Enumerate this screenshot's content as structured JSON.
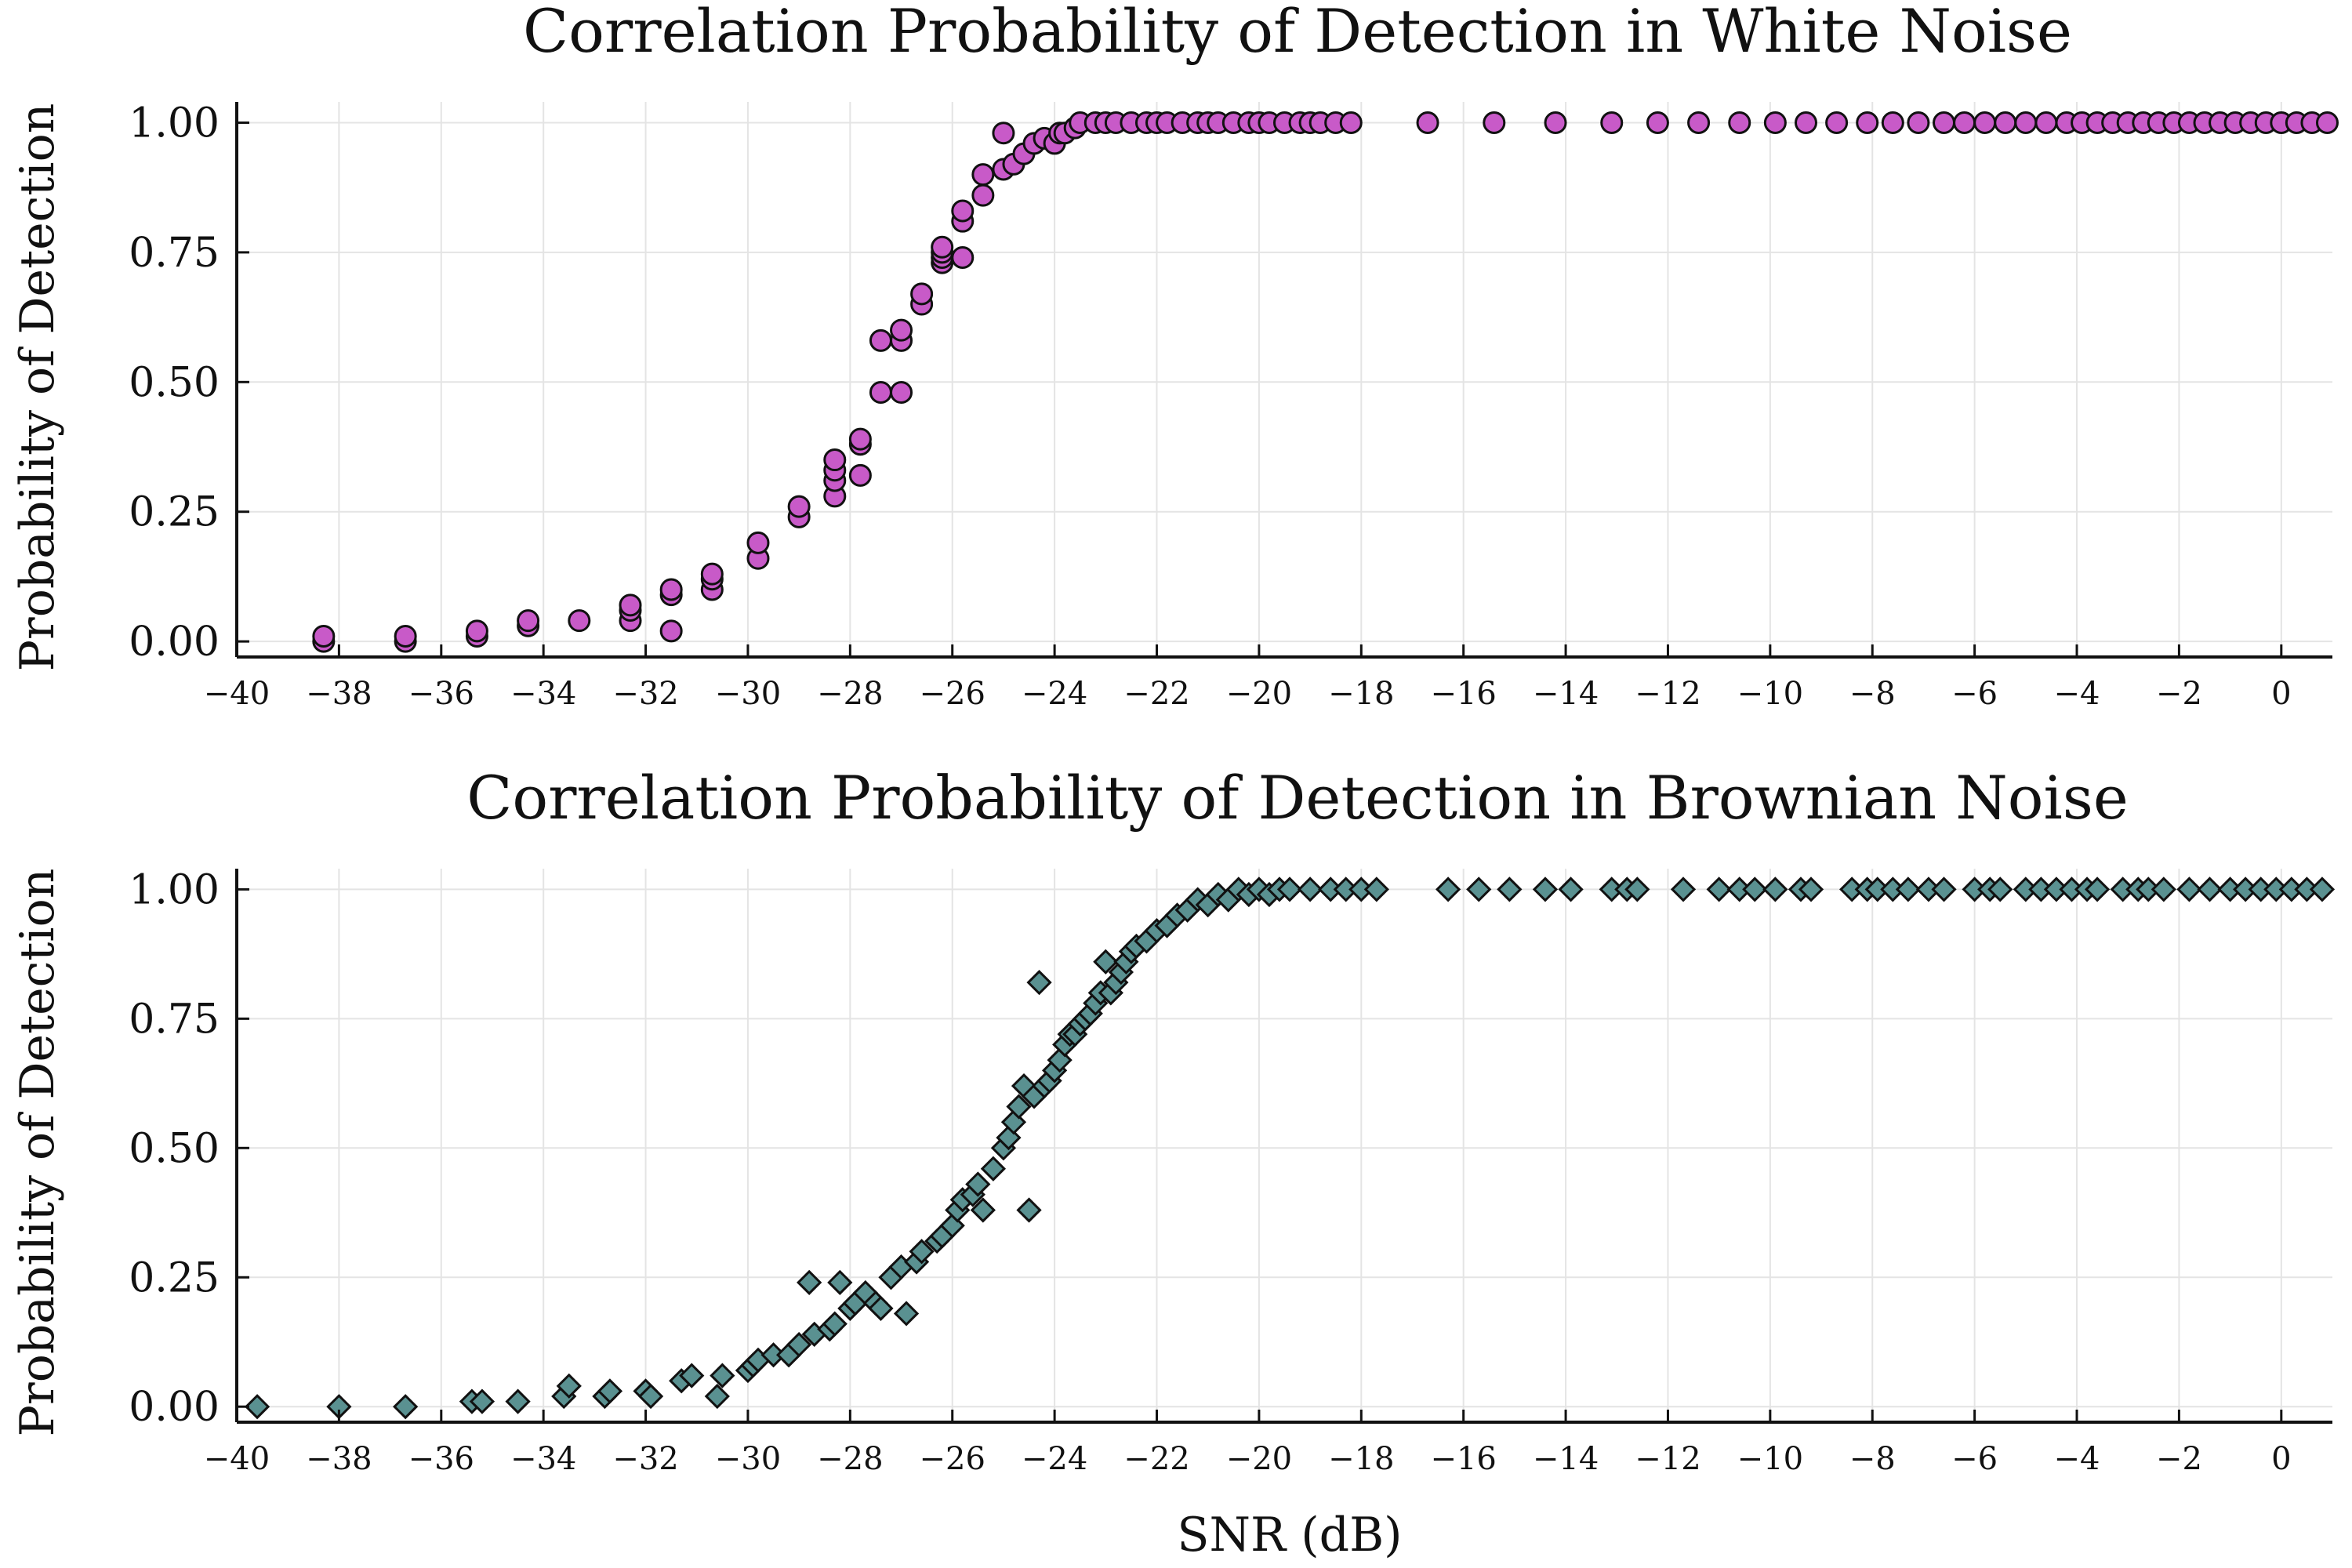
{
  "chart_data": [
    {
      "type": "scatter",
      "title": "Correlation Probability of Detection in White Noise",
      "xlabel": "",
      "ylabel": "Probability of Detection",
      "xlim": [
        -40,
        1
      ],
      "ylim": [
        -0.03,
        1.04
      ],
      "xticks": [
        "−40",
        "−38",
        "−36",
        "−34",
        "−32",
        "−30",
        "−28",
        "−26",
        "−24",
        "−22",
        "−20",
        "−18",
        "−16",
        "−14",
        "−12",
        "−10",
        "−8",
        "−6",
        "−4",
        "−2",
        "0"
      ],
      "yticks": [
        "0.00",
        "0.25",
        "0.50",
        "0.75",
        "1.00"
      ],
      "grid": true,
      "marker": "circle",
      "color": "#c85ac8",
      "series": [
        {
          "x": [
            -38.3,
            -38.3,
            -36.7,
            -36.7,
            -35.3,
            -35.3,
            -34.3,
            -34.3,
            -33.3,
            -32.3,
            -32.3,
            -32.3,
            -31.5,
            -31.5,
            -31.5,
            -30.7,
            -30.7,
            -30.7,
            -29.8,
            -29.8,
            -29.0,
            -29.0,
            -28.3,
            -28.3,
            -28.3,
            -28.3,
            -27.8,
            -27.8,
            -27.8,
            -27.4,
            -27.4,
            -27.0,
            -27.0,
            -27.0,
            -26.6,
            -26.6,
            -26.2,
            -26.2,
            -26.2,
            -26.2,
            -25.8,
            -25.8,
            -25.8,
            -25.4,
            -25.4,
            -25.0,
            -25.0,
            -24.8,
            -24.6,
            -24.4,
            -24.2,
            -24.0,
            -23.9,
            -23.8,
            -23.6,
            -23.5,
            -23.2,
            -23.0,
            -22.8,
            -22.5,
            -22.2,
            -22.0,
            -21.8,
            -21.5,
            -21.2,
            -21.0,
            -20.8,
            -20.5,
            -20.2,
            -20.0,
            -19.8,
            -19.5,
            -19.2,
            -19.0,
            -18.8,
            -18.5,
            -18.2,
            -16.7,
            -15.4,
            -14.2,
            -13.1,
            -12.2,
            -11.4,
            -10.6,
            -9.9,
            -9.3,
            -8.7,
            -8.1,
            -7.6,
            -7.1,
            -6.6,
            -6.2,
            -5.8,
            -5.4,
            -5.0,
            -4.6,
            -4.2,
            -3.9,
            -3.6,
            -3.3,
            -3.0,
            -2.7,
            -2.4,
            -2.1,
            -1.8,
            -1.5,
            -1.2,
            -0.9,
            -0.6,
            -0.3,
            0.0,
            0.3,
            0.6,
            0.9
          ],
          "y": [
            0.0,
            0.01,
            0.0,
            0.01,
            0.01,
            0.02,
            0.03,
            0.04,
            0.04,
            0.04,
            0.06,
            0.07,
            0.02,
            0.09,
            0.1,
            0.1,
            0.12,
            0.13,
            0.16,
            0.19,
            0.24,
            0.26,
            0.28,
            0.31,
            0.33,
            0.35,
            0.32,
            0.38,
            0.39,
            0.48,
            0.58,
            0.48,
            0.58,
            0.6,
            0.65,
            0.67,
            0.73,
            0.74,
            0.75,
            0.76,
            0.74,
            0.81,
            0.83,
            0.86,
            0.9,
            0.91,
            0.98,
            0.92,
            0.94,
            0.96,
            0.97,
            0.96,
            0.98,
            0.98,
            0.99,
            1.0,
            1.0,
            1.0,
            1.0,
            1.0,
            1.0,
            1.0,
            1.0,
            1.0,
            1.0,
            1.0,
            1.0,
            1.0,
            1.0,
            1.0,
            1.0,
            1.0,
            1.0,
            1.0,
            1.0,
            1.0,
            1.0,
            1.0,
            1.0,
            1.0,
            1.0,
            1.0,
            1.0,
            1.0,
            1.0,
            1.0,
            1.0,
            1.0,
            1.0,
            1.0,
            1.0,
            1.0,
            1.0,
            1.0,
            1.0,
            1.0,
            1.0,
            1.0,
            1.0,
            1.0,
            1.0,
            1.0,
            1.0,
            1.0,
            1.0,
            1.0,
            1.0,
            1.0,
            1.0,
            1.0,
            1.0,
            1.0,
            1.0,
            1.0
          ]
        }
      ]
    },
    {
      "type": "scatter",
      "title": "Correlation Probability of Detection in Brownian Noise",
      "xlabel": "SNR (dB)",
      "ylabel": "Probability of Detection",
      "xlim": [
        -40,
        1
      ],
      "ylim": [
        -0.03,
        1.04
      ],
      "xticks": [
        "−40",
        "−38",
        "−36",
        "−34",
        "−32",
        "−30",
        "−28",
        "−26",
        "−24",
        "−22",
        "−20",
        "−18",
        "−16",
        "−14",
        "−12",
        "−10",
        "−8",
        "−6",
        "−4",
        "−2",
        "0"
      ],
      "yticks": [
        "0.00",
        "0.25",
        "0.50",
        "0.75",
        "1.00"
      ],
      "grid": true,
      "marker": "diamond",
      "color": "#5a9191",
      "series": [
        {
          "x": [
            -39.6,
            -38.0,
            -36.7,
            -35.4,
            -35.2,
            -34.5,
            -33.6,
            -33.5,
            -32.8,
            -32.7,
            -32.0,
            -31.9,
            -31.3,
            -31.1,
            -30.6,
            -30.5,
            -30.0,
            -29.9,
            -29.8,
            -29.5,
            -29.2,
            -29.0,
            -28.8,
            -28.7,
            -28.4,
            -28.3,
            -28.2,
            -28.0,
            -27.9,
            -27.7,
            -27.5,
            -27.4,
            -27.2,
            -27.0,
            -26.9,
            -26.7,
            -26.6,
            -26.3,
            -26.2,
            -26.0,
            -25.9,
            -25.8,
            -25.6,
            -25.5,
            -25.4,
            -25.2,
            -25.0,
            -24.9,
            -24.8,
            -24.7,
            -24.6,
            -24.5,
            -24.4,
            -24.3,
            -24.2,
            -24.1,
            -24.0,
            -23.9,
            -23.8,
            -23.7,
            -23.6,
            -23.5,
            -23.4,
            -23.3,
            -23.2,
            -23.1,
            -23.0,
            -22.9,
            -22.8,
            -22.7,
            -22.6,
            -22.5,
            -22.4,
            -22.2,
            -22.0,
            -21.8,
            -21.6,
            -21.4,
            -21.2,
            -21.0,
            -20.8,
            -20.6,
            -20.4,
            -20.2,
            -20.0,
            -19.8,
            -19.6,
            -19.4,
            -19.0,
            -18.6,
            -18.3,
            -18.0,
            -17.7,
            -16.3,
            -15.7,
            -15.1,
            -14.4,
            -13.9,
            -13.1,
            -12.8,
            -12.6,
            -11.7,
            -11.0,
            -10.6,
            -10.3,
            -9.9,
            -9.4,
            -9.2,
            -8.4,
            -8.1,
            -7.9,
            -7.6,
            -7.3,
            -6.9,
            -6.6,
            -6.0,
            -5.7,
            -5.5,
            -5.0,
            -4.7,
            -4.4,
            -4.1,
            -3.8,
            -3.6,
            -3.1,
            -2.8,
            -2.6,
            -2.3,
            -1.8,
            -1.4,
            -1.0,
            -0.7,
            -0.4,
            -0.1,
            0.2,
            0.5,
            0.8
          ],
          "y": [
            0.0,
            0.0,
            0.0,
            0.01,
            0.01,
            0.01,
            0.02,
            0.04,
            0.02,
            0.03,
            0.03,
            0.02,
            0.05,
            0.06,
            0.02,
            0.06,
            0.07,
            0.08,
            0.09,
            0.1,
            0.1,
            0.12,
            0.24,
            0.14,
            0.15,
            0.16,
            0.24,
            0.19,
            0.2,
            0.22,
            0.2,
            0.19,
            0.25,
            0.27,
            0.18,
            0.28,
            0.3,
            0.32,
            0.33,
            0.35,
            0.38,
            0.4,
            0.41,
            0.43,
            0.38,
            0.46,
            0.5,
            0.52,
            0.55,
            0.58,
            0.62,
            0.38,
            0.6,
            0.82,
            0.62,
            0.63,
            0.65,
            0.67,
            0.7,
            0.72,
            0.72,
            0.74,
            0.75,
            0.76,
            0.78,
            0.8,
            0.86,
            0.8,
            0.82,
            0.84,
            0.86,
            0.88,
            0.89,
            0.9,
            0.92,
            0.93,
            0.95,
            0.96,
            0.98,
            0.97,
            0.99,
            0.98,
            1.0,
            0.99,
            1.0,
            0.99,
            1.0,
            1.0,
            1.0,
            1.0,
            1.0,
            1.0,
            1.0,
            1.0,
            1.0,
            1.0,
            1.0,
            1.0,
            1.0,
            1.0,
            1.0,
            1.0,
            1.0,
            1.0,
            1.0,
            1.0,
            1.0,
            1.0,
            1.0,
            1.0,
            1.0,
            1.0,
            1.0,
            1.0,
            1.0,
            1.0,
            1.0,
            1.0,
            1.0,
            1.0,
            1.0,
            1.0,
            1.0,
            1.0,
            1.0,
            1.0,
            1.0,
            1.0,
            1.0,
            1.0,
            1.0,
            1.0,
            1.0,
            1.0,
            1.0,
            1.0,
            1.0
          ]
        }
      ]
    }
  ]
}
